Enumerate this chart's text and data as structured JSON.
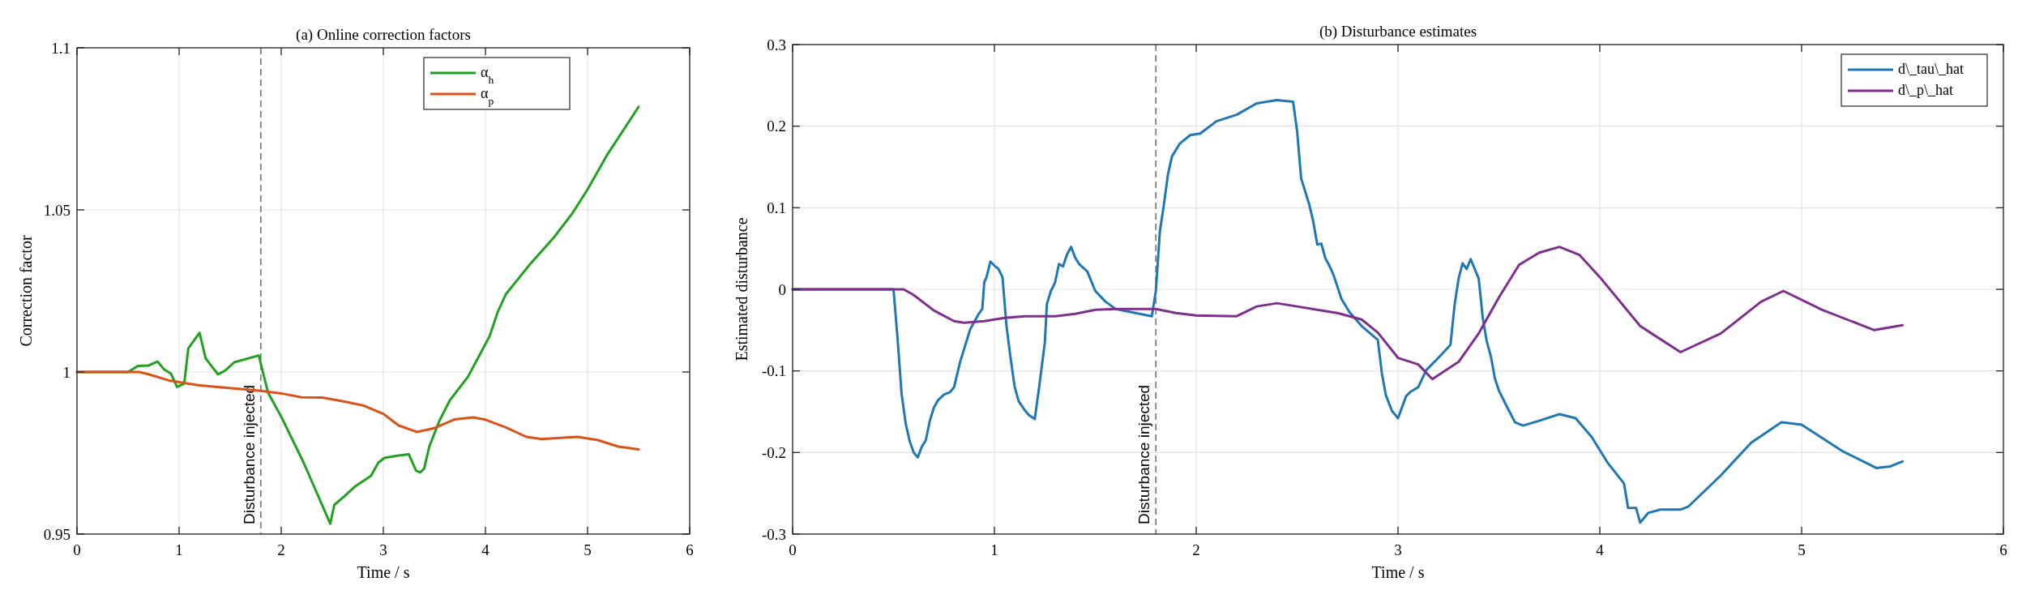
{
  "chart_data": [
    {
      "type": "line",
      "title": "(a) Online correction factors",
      "xlabel": "Time / s",
      "ylabel": "Correction factor",
      "xlim": [
        0,
        6
      ],
      "xticks": [
        0,
        1,
        2,
        3,
        4,
        5,
        6
      ],
      "ylim": [
        0.95,
        1.1
      ],
      "yticks": [
        0.95,
        1,
        1.05,
        1.1
      ],
      "grid": true,
      "legend": "top",
      "line_style": "solid",
      "ref_lines": [
        {
          "axis": "x",
          "value": 1.8,
          "label": "Disturbance injected",
          "line_style": "dashed",
          "color": "#808080"
        }
      ],
      "series": [
        {
          "name": "α$_{h}$",
          "color": "#22a022",
          "x": [
            0,
            0.5,
            0.6,
            0.7,
            0.79,
            0.85,
            0.92,
            0.98,
            1.05,
            1.09,
            1.2,
            1.26,
            1.32,
            1.38,
            1.45,
            1.54,
            1.78,
            1.87,
            2.0,
            2.22,
            2.48,
            2.52,
            2.62,
            2.72,
            2.88,
            2.95,
            3.01,
            3.08,
            3.14,
            3.25,
            3.32,
            3.36,
            3.4,
            3.45,
            3.55,
            3.65,
            3.83,
            4.04,
            4.12,
            4.2,
            4.44,
            4.67,
            4.85,
            5.0,
            5.19,
            5.5
          ],
          "values": [
            1,
            1,
            1.0019,
            1.002,
            1.0032,
            1.0009,
            0.9995,
            0.9954,
            0.9964,
            1.0073,
            1.0121,
            1.0042,
            1.0017,
            0.9993,
            1.0004,
            1.003,
            1.0051,
            0.9937,
            0.9862,
            0.972,
            0.9532,
            0.959,
            0.9617,
            0.9646,
            0.968,
            0.972,
            0.9735,
            0.9739,
            0.9742,
            0.9746,
            0.9696,
            0.969,
            0.9702,
            0.977,
            0.985,
            0.9912,
            0.9986,
            1.011,
            1.0185,
            1.024,
            1.0334,
            1.0415,
            1.0489,
            1.0563,
            1.0669,
            1.0818
          ]
        },
        {
          "name": "α$_{p}$",
          "color": "#d95319",
          "x": [
            0,
            0.61,
            0.7,
            0.9,
            1.2,
            1.4,
            1.8,
            2.0,
            2.2,
            2.4,
            2.6,
            2.8,
            3.0,
            3.15,
            3.33,
            3.5,
            3.7,
            3.88,
            4.0,
            4.2,
            4.4,
            4.55,
            4.8,
            4.9,
            5.1,
            5.3,
            5.5
          ],
          "values": [
            1,
            1,
            0.9993,
            0.9974,
            0.9959,
            0.9953,
            0.9942,
            0.9934,
            0.9922,
            0.9921,
            0.991,
            0.9897,
            0.9871,
            0.9835,
            0.9815,
            0.9827,
            0.9854,
            0.986,
            0.9853,
            0.9829,
            0.98,
            0.9793,
            0.9798,
            0.98,
            0.979,
            0.977,
            0.9761
          ]
        }
      ]
    },
    {
      "type": "line",
      "title": "(b) Disturbance estimates",
      "xlabel": "Time / s",
      "ylabel": "Estimated disturbance",
      "xlim": [
        0,
        6
      ],
      "xticks": [
        0,
        1,
        2,
        3,
        4,
        5,
        6
      ],
      "ylim": [
        -0.3,
        0.3
      ],
      "yticks": [
        -0.3,
        -0.2,
        -0.1,
        0,
        0.1,
        0.2,
        0.3
      ],
      "grid": true,
      "legend": "top right",
      "line_style": "solid",
      "ref_lines": [
        {
          "axis": "x",
          "value": 1.8,
          "label": "Disturbance injected",
          "line_style": "dashed",
          "color": "#808080"
        }
      ],
      "series": [
        {
          "name": "d\\_tau\\_hat",
          "color": "#1f77b4",
          "x": [
            0,
            0.5,
            0.52,
            0.54,
            0.56,
            0.58,
            0.6,
            0.62,
            0.64,
            0.66,
            0.68,
            0.7,
            0.72,
            0.75,
            0.78,
            0.8,
            0.83,
            0.86,
            0.88,
            0.92,
            0.94,
            0.95,
            0.96,
            0.98,
            1.0,
            1.02,
            1.04,
            1.06,
            1.08,
            1.1,
            1.12,
            1.15,
            1.17,
            1.2,
            1.22,
            1.25,
            1.26,
            1.28,
            1.3,
            1.32,
            1.34,
            1.36,
            1.38,
            1.4,
            1.42,
            1.46,
            1.5,
            1.55,
            1.6,
            1.7,
            1.78,
            1.8,
            1.82,
            1.84,
            1.86,
            1.88,
            1.92,
            1.97,
            2.02,
            2.1,
            2.2,
            2.3,
            2.4,
            2.48,
            2.5,
            2.52,
            2.56,
            2.58,
            2.6,
            2.62,
            2.64,
            2.66,
            2.68,
            2.72,
            2.76,
            2.82,
            2.9,
            2.92,
            2.94,
            2.97,
            3.0,
            3.04,
            3.06,
            3.1,
            3.14,
            3.2,
            3.26,
            3.28,
            3.3,
            3.32,
            3.34,
            3.36,
            3.4,
            3.42,
            3.44,
            3.46,
            3.48,
            3.5,
            3.54,
            3.58,
            3.62,
            3.7,
            3.8,
            3.88,
            3.96,
            4.04,
            4.12,
            4.14,
            4.18,
            4.2,
            4.24,
            4.3,
            4.4,
            4.44,
            4.6,
            4.75,
            4.9,
            5.0,
            5.2,
            5.37,
            5.44,
            5.5
          ],
          "values": [
            0,
            0,
            -0.06,
            -0.128,
            -0.164,
            -0.186,
            -0.2,
            -0.206,
            -0.193,
            -0.185,
            -0.161,
            -0.145,
            -0.136,
            -0.129,
            -0.126,
            -0.12,
            -0.089,
            -0.065,
            -0.049,
            -0.031,
            -0.024,
            0.009,
            0.014,
            0.034,
            0.029,
            0.025,
            0.015,
            -0.045,
            -0.084,
            -0.119,
            -0.137,
            -0.148,
            -0.154,
            -0.159,
            -0.123,
            -0.065,
            -0.018,
            -0.002,
            0.008,
            0.031,
            0.028,
            0.043,
            0.052,
            0.039,
            0.031,
            0.022,
            -0.002,
            -0.015,
            -0.024,
            -0.029,
            -0.033,
            -0.002,
            0.071,
            0.104,
            0.141,
            0.163,
            0.179,
            0.189,
            0.191,
            0.206,
            0.214,
            0.228,
            0.232,
            0.23,
            0.194,
            0.136,
            0.104,
            0.083,
            0.055,
            0.056,
            0.038,
            0.029,
            0.018,
            -0.012,
            -0.028,
            -0.045,
            -0.062,
            -0.103,
            -0.13,
            -0.149,
            -0.158,
            -0.131,
            -0.126,
            -0.12,
            -0.099,
            -0.084,
            -0.068,
            -0.02,
            0.013,
            0.032,
            0.025,
            0.037,
            0.013,
            -0.035,
            -0.064,
            -0.082,
            -0.109,
            -0.124,
            -0.144,
            -0.163,
            -0.167,
            -0.161,
            -0.153,
            -0.158,
            -0.181,
            -0.213,
            -0.238,
            -0.268,
            -0.268,
            -0.286,
            -0.274,
            -0.27,
            -0.27,
            -0.266,
            -0.228,
            -0.188,
            -0.163,
            -0.166,
            -0.198,
            -0.219,
            -0.217,
            -0.211
          ]
        },
        {
          "name": "d\\_p\\_hat",
          "color": "#7e2f8e",
          "x": [
            0,
            0.55,
            0.6,
            0.7,
            0.8,
            0.85,
            0.95,
            1.05,
            1.15,
            1.3,
            1.4,
            1.5,
            1.6,
            1.8,
            1.9,
            2.0,
            2.2,
            2.3,
            2.4,
            2.5,
            2.6,
            2.7,
            2.82,
            2.9,
            3.0,
            3.1,
            3.17,
            3.3,
            3.4,
            3.5,
            3.6,
            3.7,
            3.8,
            3.9,
            4.0,
            4.2,
            4.4,
            4.6,
            4.8,
            4.91,
            5.1,
            5.36,
            5.5
          ],
          "values": [
            0,
            0,
            -0.007,
            -0.026,
            -0.039,
            -0.041,
            -0.039,
            -0.035,
            -0.033,
            -0.033,
            -0.03,
            -0.025,
            -0.024,
            -0.024,
            -0.029,
            -0.032,
            -0.033,
            -0.021,
            -0.017,
            -0.021,
            -0.025,
            -0.029,
            -0.037,
            -0.053,
            -0.084,
            -0.092,
            -0.11,
            -0.089,
            -0.054,
            -0.01,
            0.03,
            0.045,
            0.052,
            0.042,
            0.015,
            -0.045,
            -0.077,
            -0.054,
            -0.015,
            -0.002,
            -0.025,
            -0.05,
            -0.044
          ]
        }
      ]
    }
  ]
}
